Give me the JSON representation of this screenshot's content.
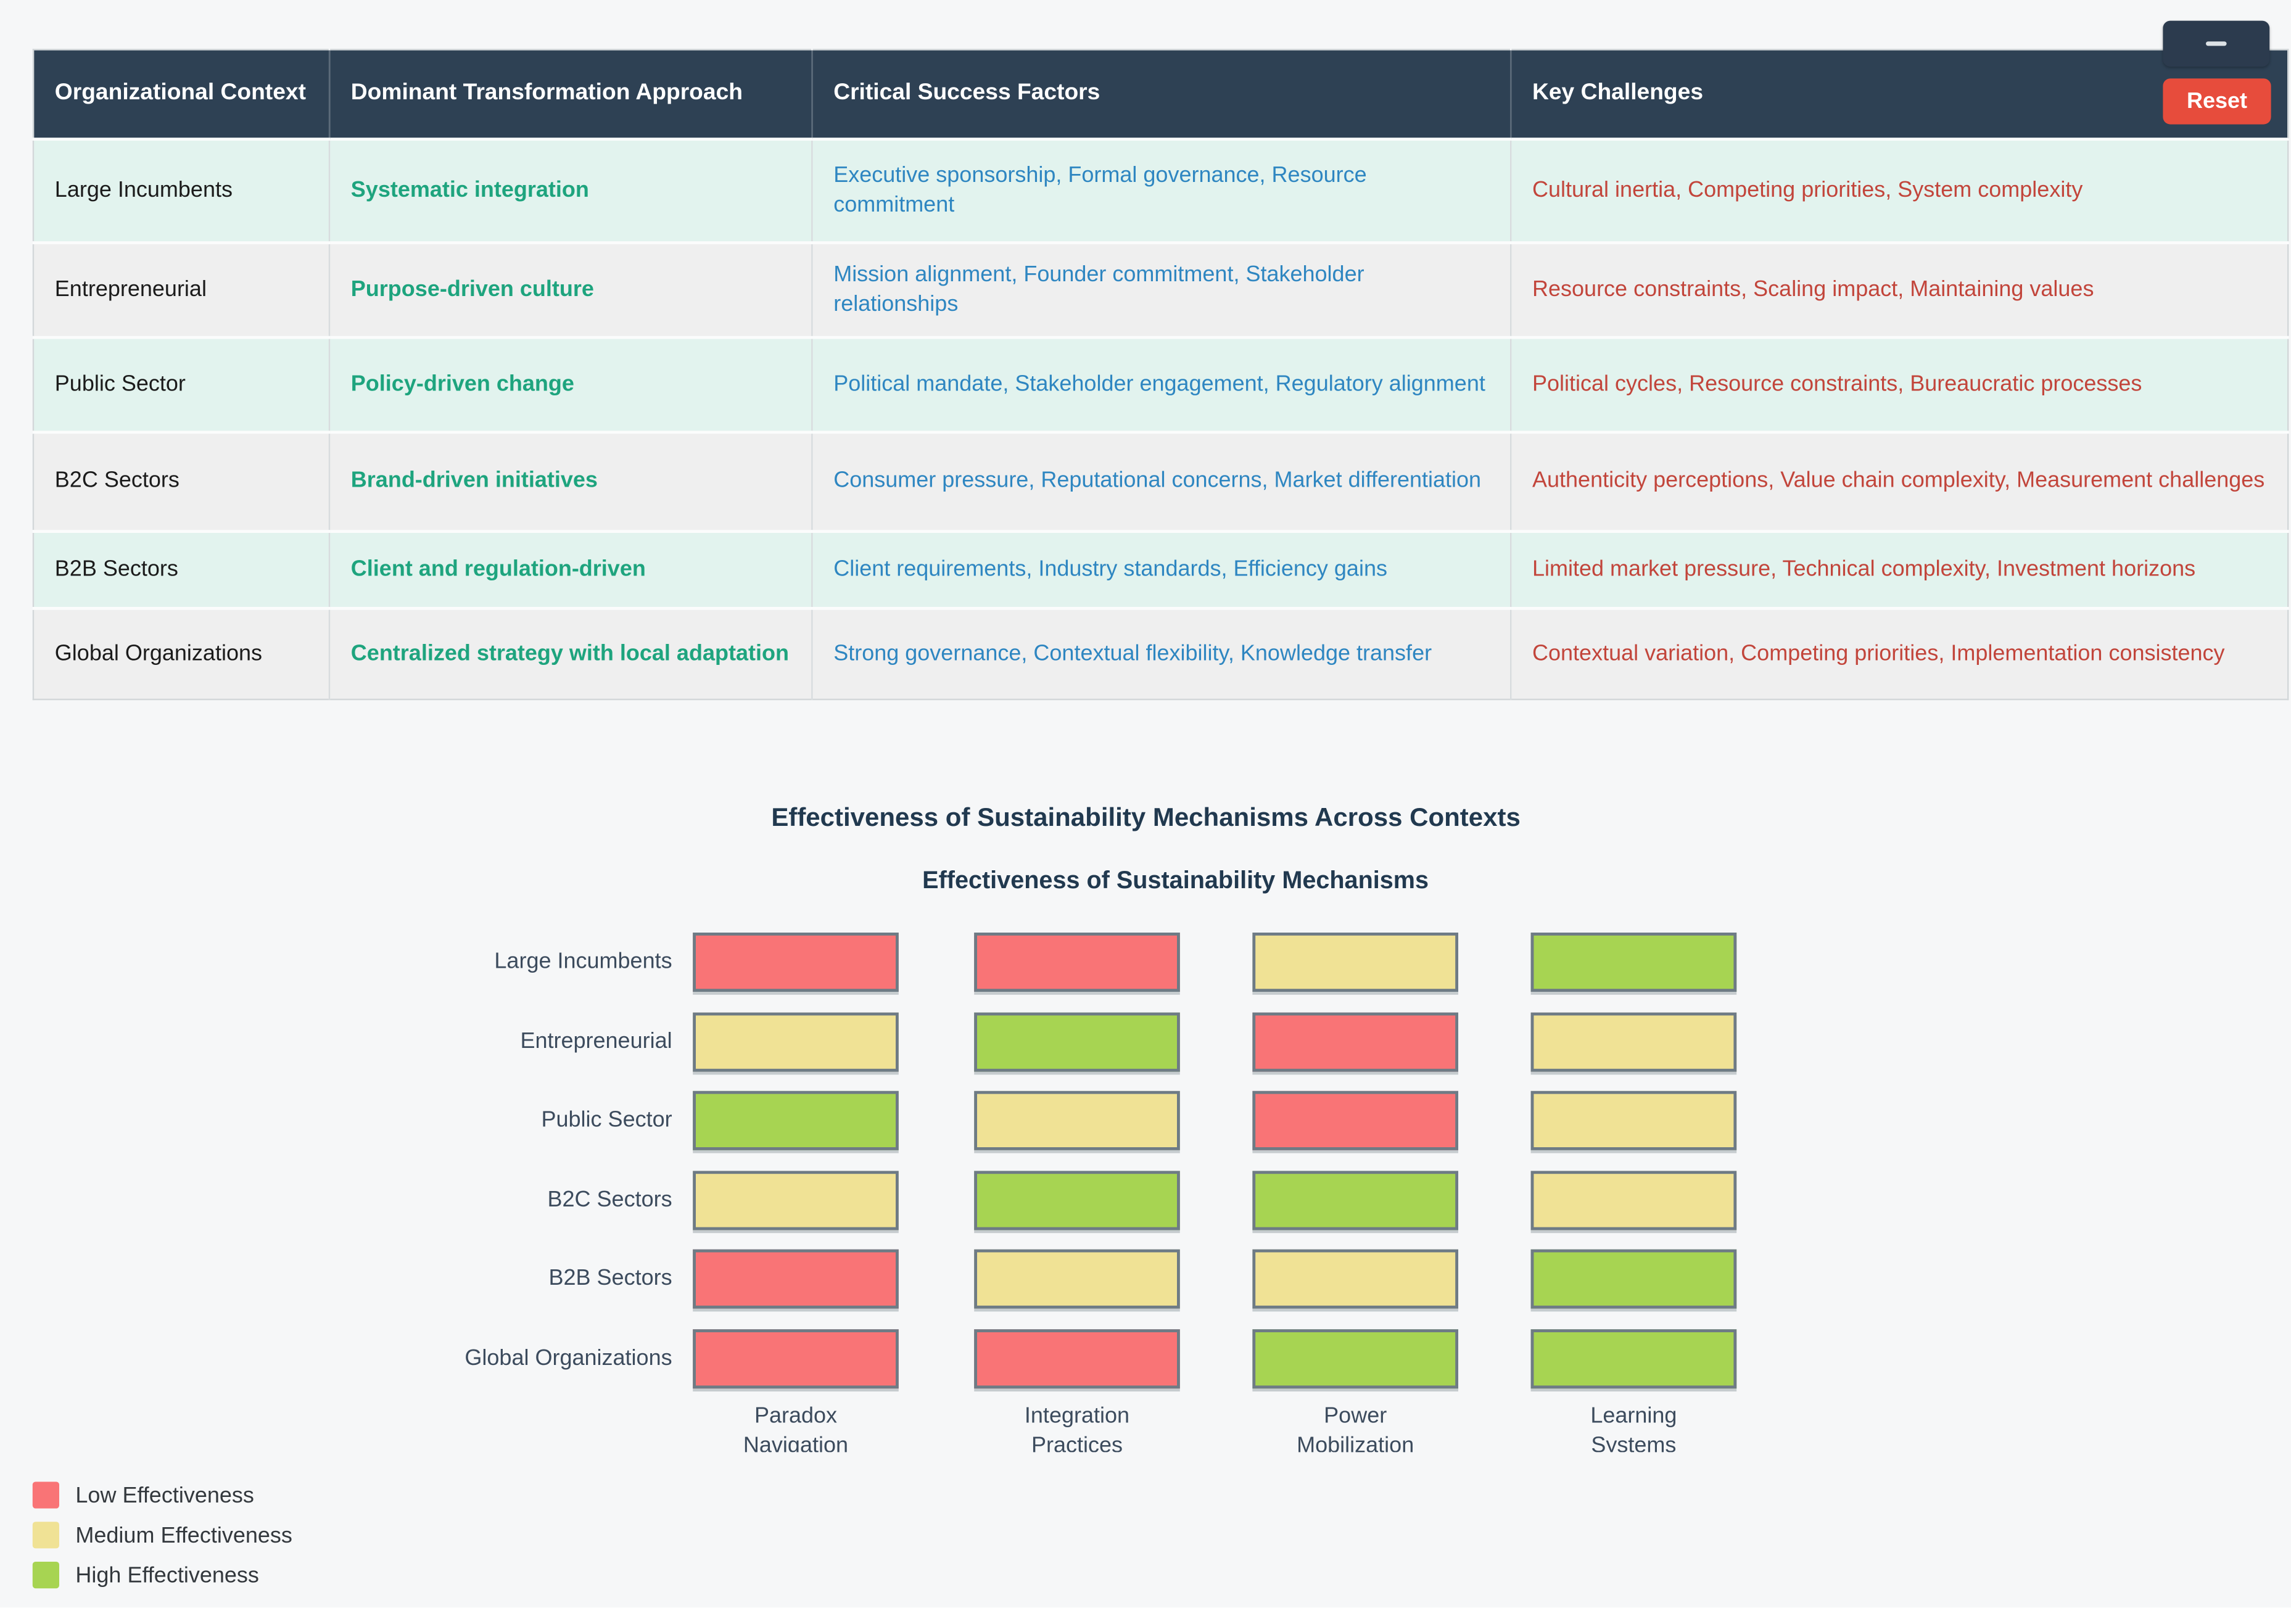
{
  "window": {
    "minimize_label": "-",
    "reset_label": "Reset"
  },
  "table": {
    "headers": [
      "Organizational Context",
      "Dominant Transformation Approach",
      "Critical Success Factors",
      "Key Challenges"
    ],
    "rows": [
      {
        "context": "Large Incumbents",
        "approach": "Systematic integration",
        "success_factors": "Executive sponsorship, Formal governance, Resource commitment",
        "challenges": "Cultural inertia, Competing priorities, System complexity"
      },
      {
        "context": "Entrepreneurial",
        "approach": "Purpose-driven culture",
        "success_factors": "Mission alignment, Founder commitment, Stakeholder relationships",
        "challenges": "Resource constraints, Scaling impact, Maintaining values"
      },
      {
        "context": "Public Sector",
        "approach": "Policy-driven change",
        "success_factors": "Political mandate, Stakeholder engagement, Regulatory alignment",
        "challenges": "Political cycles, Resource constraints, Bureaucratic processes"
      },
      {
        "context": "B2C Sectors",
        "approach": "Brand-driven initiatives",
        "success_factors": "Consumer pressure, Reputational concerns, Market differentiation",
        "challenges": "Authenticity perceptions, Value chain complexity, Measurement challenges"
      },
      {
        "context": "B2B Sectors",
        "approach": "Client and regulation-driven",
        "success_factors": "Client requirements, Industry standards, Efficiency gains",
        "challenges": "Limited market pressure, Technical complexity, Investment horizons"
      },
      {
        "context": "Global Organizations",
        "approach": "Centralized strategy with local adaptation",
        "success_factors": "Strong governance, Contextual flexibility, Knowledge transfer",
        "challenges": "Contextual variation, Competing priorities, Implementation consistency"
      }
    ]
  },
  "section_title": "Effectiveness of Sustainability Mechanisms Across Contexts",
  "chart_data": {
    "type": "heatmap",
    "title": "Effectiveness of Sustainability Mechanisms",
    "rows": [
      "Large Incumbents",
      "Entrepreneurial",
      "Public Sector",
      "B2C Sectors",
      "B2B Sectors",
      "Global Organizations"
    ],
    "columns": [
      "Paradox Navigation",
      "Integration Practices",
      "Power Mobilization",
      "Learning Systems"
    ],
    "column_label_lines": [
      [
        "Paradox",
        "Navigation"
      ],
      [
        "Integration",
        "Practices"
      ],
      [
        "Power",
        "Mobilization"
      ],
      [
        "Learning",
        "Systems"
      ]
    ],
    "values": [
      [
        1,
        1,
        2,
        3
      ],
      [
        2,
        3,
        1,
        2
      ],
      [
        3,
        2,
        1,
        2
      ],
      [
        2,
        3,
        3,
        2
      ],
      [
        1,
        2,
        2,
        3
      ],
      [
        1,
        1,
        3,
        3
      ]
    ],
    "value_scale": {
      "1": "Low Effectiveness",
      "2": "Medium Effectiveness",
      "3": "High Effectiveness"
    },
    "colors": {
      "low": "#f97476",
      "medium": "#f0e295",
      "high": "#a7d452"
    },
    "legend_position": "bottom-left",
    "legend": [
      {
        "label": "Low Effectiveness",
        "color": "#f97476"
      },
      {
        "label": "Medium Effectiveness",
        "color": "#f0e295"
      },
      {
        "label": "High Effectiveness",
        "color": "#a7d452"
      }
    ]
  },
  "colors": {
    "header_bg": "#2e4154",
    "row_mint": "#e2f3ee",
    "row_grey": "#efefef",
    "approach_text": "#1ea47e",
    "success_text": "#2e86c1",
    "challenge_text": "#c2453b",
    "reset_bg": "#e74c3c",
    "minimize_bg": "#2c3b4e",
    "title_text": "#21394f"
  }
}
